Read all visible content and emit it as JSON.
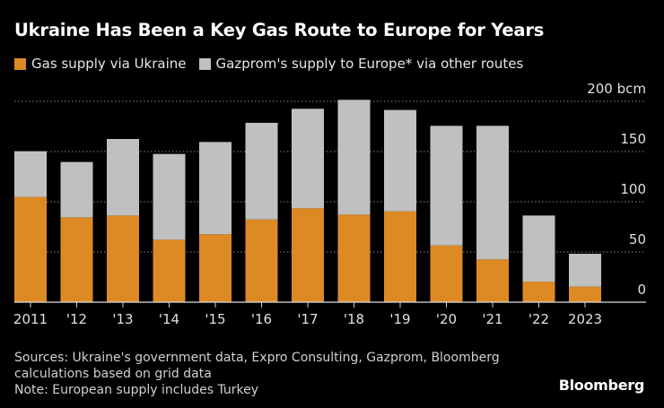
{
  "chart_data": {
    "type": "bar",
    "stacked": true,
    "title": "Ukraine Has Been a Key Gas Route to Europe for Years",
    "categories": [
      "2011",
      "'12",
      "'13",
      "'14",
      "'15",
      "'16",
      "'17",
      "'18",
      "'19",
      "'20",
      "'21",
      "'22",
      "2023"
    ],
    "series": [
      {
        "name": "Gas supply via Ukraine",
        "color": "#dd8a25",
        "values": [
          104.8,
          84.5,
          86.3,
          62.2,
          67.6,
          82.4,
          93.5,
          87.2,
          90.5,
          56.5,
          42.6,
          20.5,
          15.5
        ]
      },
      {
        "name": "Gazprom's supply to Europe* via other routes",
        "color": "#c0c0c0",
        "values": [
          45.5,
          55.1,
          76.2,
          85.4,
          91.9,
          96.2,
          99.1,
          114.3,
          100.9,
          119.1,
          133.0,
          65.8,
          32.7
        ]
      }
    ],
    "ylim": [
      0,
      200
    ],
    "yticks": [
      0,
      50,
      100,
      150,
      200
    ],
    "ytick_labels": [
      "0",
      "50",
      "100",
      "150",
      "200 bcm"
    ],
    "yaxis_side": "right",
    "grid": true,
    "legend_placement": "top-left"
  },
  "notes": {
    "line1": "Sources: Ukraine's government data, Expro Consulting, Gazprom, Bloomberg",
    "line2": "calculations based on grid data",
    "line3": "Note: European supply includes Turkey"
  },
  "logo": "Bloomberg"
}
